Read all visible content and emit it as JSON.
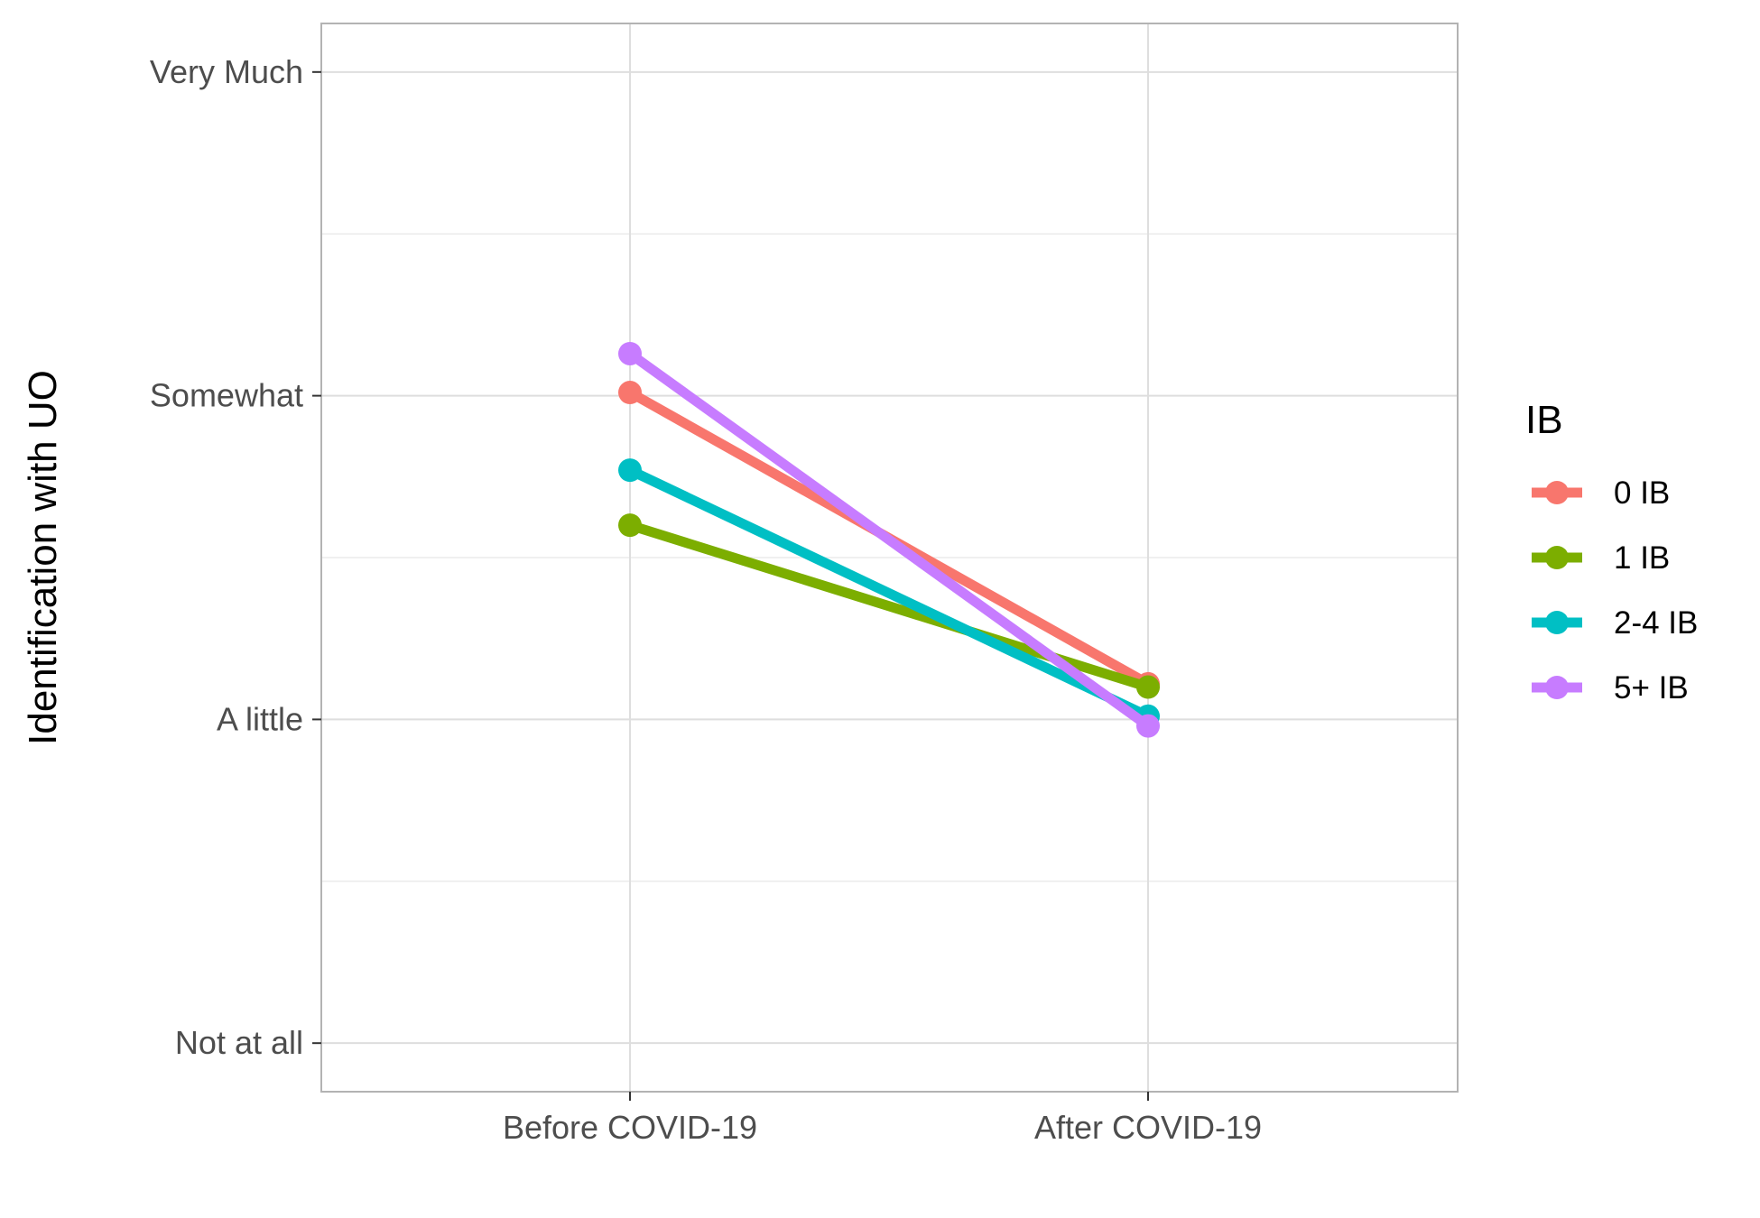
{
  "chart_data": {
    "type": "line",
    "title": "",
    "xlabel": "",
    "ylabel": "Identification with UO",
    "categories": [
      "Before COVID-19",
      "After COVID-19"
    ],
    "y_ticks": [
      {
        "value": 1,
        "label": "Not at all"
      },
      {
        "value": 2,
        "label": "A little"
      },
      {
        "value": 3,
        "label": "Somewhat"
      },
      {
        "value": 4,
        "label": "Very Much"
      }
    ],
    "ylim": [
      0.85,
      4.15
    ],
    "grid": true,
    "legend": {
      "title": "IB",
      "position": "right"
    },
    "series": [
      {
        "name": "0 IB",
        "color": "#F8766D",
        "values": [
          3.01,
          2.11
        ]
      },
      {
        "name": "1 IB",
        "color": "#7CAE00",
        "values": [
          2.6,
          2.1
        ]
      },
      {
        "name": "2-4 IB",
        "color": "#00BFC4",
        "values": [
          2.77,
          2.01
        ]
      },
      {
        "name": "5+ IB",
        "color": "#C77CFF",
        "values": [
          3.13,
          1.98
        ]
      }
    ]
  }
}
